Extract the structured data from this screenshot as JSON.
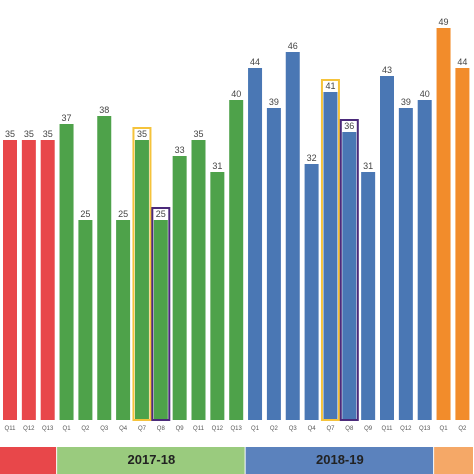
{
  "chart_data": {
    "type": "bar",
    "categories": [
      "Q11",
      "Q12",
      "Q13",
      "Q1",
      "Q2",
      "Q3",
      "Q4",
      "Q7",
      "Q8",
      "Q9",
      "Q11",
      "Q12",
      "Q13",
      "Q1",
      "Q2",
      "Q3",
      "Q4",
      "Q7",
      "Q8",
      "Q9",
      "Q11",
      "Q12",
      "Q13",
      "Q1",
      "Q2"
    ],
    "values": [
      35,
      35,
      35,
      37,
      25,
      38,
      25,
      35,
      25,
      33,
      35,
      31,
      40,
      44,
      39,
      46,
      32,
      41,
      36,
      31,
      43,
      39,
      40,
      49,
      44
    ],
    "groups": [
      {
        "label": "",
        "color": "#e8474a",
        "bar_color": "#e8474a",
        "count": 3
      },
      {
        "label": "2017-18",
        "color": "#9acb7e",
        "bar_color": "#4ea24a",
        "count": 10
      },
      {
        "label": "2018-19",
        "color": "#5b82bd",
        "bar_color": "#4a77b4",
        "count": 10
      },
      {
        "label": "",
        "color": "#f5a867",
        "bar_color": "#f28c2b",
        "count": 2
      }
    ],
    "highlights": [
      {
        "category_index": 7,
        "color": "#f5c33b"
      },
      {
        "category_index": 8,
        "color": "#4b2a7a"
      },
      {
        "category_index": 17,
        "color": "#f5c33b"
      },
      {
        "category_index": 18,
        "color": "#4b2a7a"
      }
    ],
    "title": "",
    "xlabel": "",
    "ylabel": "",
    "ylim": [
      0,
      50
    ],
    "grid": false,
    "legend": "none",
    "data_labels": true
  }
}
